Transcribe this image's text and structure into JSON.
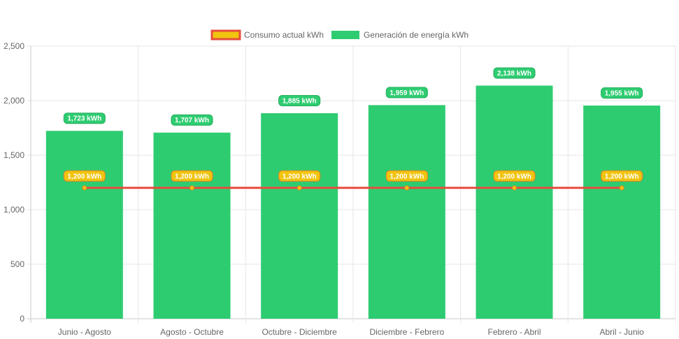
{
  "chart_data": {
    "type": "bar",
    "categories": [
      "Junio - Agosto",
      "Agosto - Octubre",
      "Octubre - Diciembre",
      "Diciembre - Febrero",
      "Febrero - Abril",
      "Abril - Junio"
    ],
    "series": [
      {
        "name": "Generación de energía kWh",
        "type": "bar",
        "values": [
          1723,
          1707,
          1885,
          1959,
          2138,
          1955
        ],
        "labels": [
          "1,723 kWh",
          "1,707 kWh",
          "1,885 kWh",
          "1,959 kWh",
          "2,138 kWh",
          "1,955 kWh"
        ],
        "color": "#2ecc71"
      },
      {
        "name": "Consumo actual kWh",
        "type": "line",
        "values": [
          1200,
          1200,
          1200,
          1200,
          1200,
          1200
        ],
        "labels": [
          "1,200 kWh",
          "1,200 kWh",
          "1,200 kWh",
          "1,200 kWh",
          "1,200 kWh",
          "1,200 kWh"
        ],
        "color": "#e74c3c",
        "fill_color": "#f1c40f"
      }
    ],
    "y_ticks": [
      "0",
      "500",
      "1,000",
      "1,500",
      "2,000",
      "2,500"
    ],
    "ylim": [
      0,
      2500
    ],
    "grid": true,
    "legend_position": "top-center",
    "title": "",
    "xlabel": "",
    "ylabel": ""
  }
}
